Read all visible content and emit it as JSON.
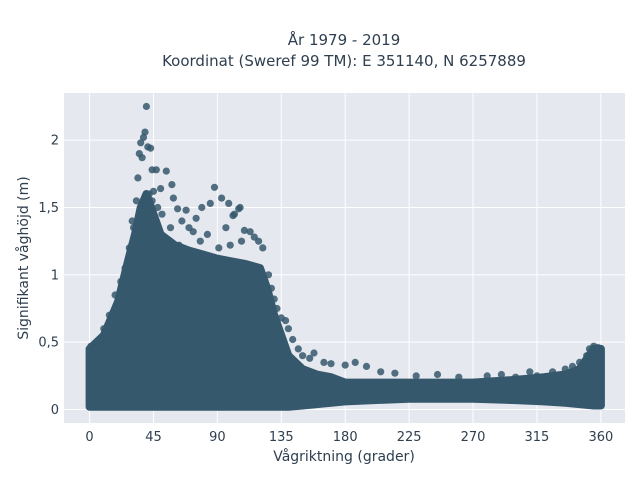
{
  "chart_data": {
    "type": "scatter",
    "title": "År 1979 - 2019",
    "subtitle": "Koordinat (Sweref 99 TM): E 351140, N 6257889",
    "xlabel": "Vågriktning (grader)",
    "ylabel": "Signifikant våghöjd (m)",
    "xlim": [
      -18,
      377
    ],
    "ylim": [
      -0.1,
      2.35
    ],
    "xticks": [
      0,
      45,
      90,
      135,
      180,
      225,
      270,
      315,
      360
    ],
    "xtick_labels": [
      "0",
      "45",
      "90",
      "135",
      "180",
      "225",
      "270",
      "315",
      "360"
    ],
    "yticks": [
      0,
      0.5,
      1,
      1.5,
      2
    ],
    "ytick_labels": [
      "0",
      "0,5",
      "1",
      "1,5",
      "2"
    ],
    "grid": true,
    "legend": "none",
    "colors": {
      "marker": "#35586c",
      "plot_bg": "#e6e8f0",
      "grid": "#ffffff"
    },
    "envelope": {
      "x": [
        0,
        10,
        20,
        27,
        32,
        36,
        40,
        45,
        50,
        60,
        70,
        80,
        90,
        100,
        110,
        120,
        125,
        130,
        135,
        140,
        150,
        160,
        170,
        180,
        200,
        225,
        250,
        270,
        300,
        320,
        335,
        345,
        355,
        360
      ],
      "y_upper": [
        0.45,
        0.55,
        0.8,
        1.1,
        1.3,
        1.5,
        1.6,
        1.45,
        1.3,
        1.22,
        1.18,
        1.15,
        1.12,
        1.1,
        1.08,
        1.05,
        0.9,
        0.7,
        0.55,
        0.4,
        0.3,
        0.26,
        0.24,
        0.2,
        0.2,
        0.2,
        0.2,
        0.2,
        0.22,
        0.24,
        0.26,
        0.3,
        0.45,
        0.45
      ],
      "y_lower": [
        0.02,
        0.02,
        0.02,
        0.02,
        0.02,
        0.02,
        0.02,
        0.02,
        0.02,
        0.02,
        0.02,
        0.02,
        0.02,
        0.02,
        0.02,
        0.02,
        0.02,
        0.02,
        0.02,
        0.02,
        0.03,
        0.04,
        0.05,
        0.06,
        0.07,
        0.08,
        0.08,
        0.08,
        0.07,
        0.06,
        0.05,
        0.04,
        0.03,
        0.03
      ]
    },
    "points": [
      [
        40,
        2.25
      ],
      [
        39,
        2.06
      ],
      [
        38,
        2.02
      ],
      [
        36,
        1.98
      ],
      [
        41,
        1.95
      ],
      [
        43,
        1.94
      ],
      [
        35,
        1.9
      ],
      [
        37,
        1.87
      ],
      [
        44,
        1.78
      ],
      [
        47,
        1.78
      ],
      [
        54,
        1.77
      ],
      [
        58,
        1.67
      ],
      [
        50,
        1.64
      ],
      [
        45,
        1.62
      ],
      [
        42,
        1.6
      ],
      [
        59,
        1.57
      ],
      [
        88,
        1.65
      ],
      [
        85,
        1.53
      ],
      [
        93,
        1.57
      ],
      [
        98,
        1.53
      ],
      [
        101,
        1.44
      ],
      [
        102,
        1.45
      ],
      [
        105,
        1.49
      ],
      [
        106,
        1.5
      ],
      [
        79,
        1.5
      ],
      [
        75,
        1.42
      ],
      [
        68,
        1.48
      ],
      [
        62,
        1.49
      ],
      [
        65,
        1.4
      ],
      [
        70,
        1.35
      ],
      [
        73,
        1.32
      ],
      [
        83,
        1.3
      ],
      [
        96,
        1.35
      ],
      [
        109,
        1.33
      ],
      [
        113,
        1.32
      ],
      [
        116,
        1.28
      ],
      [
        119,
        1.25
      ],
      [
        122,
        1.2
      ],
      [
        63,
        1.22
      ],
      [
        78,
        1.25
      ],
      [
        91,
        1.2
      ],
      [
        99,
        1.22
      ],
      [
        107,
        1.25
      ],
      [
        57,
        1.35
      ],
      [
        51,
        1.45
      ],
      [
        48,
        1.5
      ],
      [
        44,
        1.55
      ],
      [
        34,
        1.72
      ],
      [
        33,
        1.55
      ],
      [
        30,
        1.4
      ],
      [
        126,
        1.0
      ],
      [
        128,
        0.9
      ],
      [
        130,
        0.82
      ],
      [
        132,
        0.75
      ],
      [
        135,
        0.68
      ],
      [
        138,
        0.66
      ],
      [
        140,
        0.6
      ],
      [
        143,
        0.52
      ],
      [
        147,
        0.45
      ],
      [
        150,
        0.4
      ],
      [
        155,
        0.38
      ],
      [
        158,
        0.42
      ],
      [
        165,
        0.35
      ],
      [
        170,
        0.34
      ],
      [
        180,
        0.33
      ],
      [
        187,
        0.35
      ],
      [
        195,
        0.32
      ],
      [
        205,
        0.28
      ],
      [
        215,
        0.27
      ],
      [
        230,
        0.25
      ],
      [
        245,
        0.26
      ],
      [
        260,
        0.24
      ],
      [
        280,
        0.25
      ],
      [
        290,
        0.26
      ],
      [
        300,
        0.24
      ],
      [
        310,
        0.28
      ],
      [
        315,
        0.25
      ],
      [
        326,
        0.28
      ],
      [
        335,
        0.3
      ],
      [
        340,
        0.32
      ],
      [
        345,
        0.35
      ],
      [
        350,
        0.4
      ],
      [
        352,
        0.45
      ],
      [
        355,
        0.47
      ],
      [
        358,
        0.46
      ],
      [
        359,
        0.42
      ],
      [
        357,
        0.38
      ],
      [
        1,
        0.47
      ],
      [
        3,
        0.45
      ],
      [
        6,
        0.5
      ],
      [
        10,
        0.6
      ],
      [
        14,
        0.7
      ],
      [
        18,
        0.85
      ],
      [
        22,
        0.95
      ],
      [
        25,
        1.05
      ],
      [
        28,
        1.2
      ],
      [
        31,
        1.35
      ]
    ]
  }
}
